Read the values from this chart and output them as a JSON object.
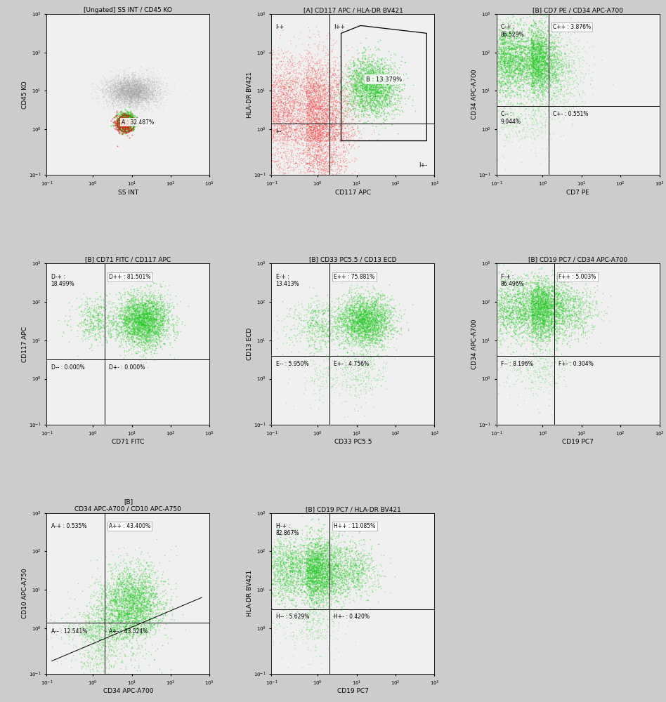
{
  "bg_color": "#cccccc",
  "plot_bg": "#f0f0f0",
  "plots": [
    {
      "idx": 0,
      "title": "[Ungated] SS INT / CD45 KO",
      "xlabel": "SS INT",
      "ylabel": "CD45 KO",
      "xlim": [
        -1,
        3
      ],
      "ylim": [
        -1,
        3
      ],
      "xticks": [
        -1,
        0,
        1,
        2,
        3
      ],
      "yticks": [
        -1,
        0,
        1,
        2,
        3
      ]
    },
    {
      "idx": 1,
      "title": "[A] CD117 APC / HLA-DR BV421",
      "xlabel": "CD117 APC",
      "ylabel": "HLA-DR BV421",
      "xlim": [
        -1,
        3
      ],
      "ylim": [
        -1,
        3
      ],
      "xticks": [
        -1,
        0,
        1,
        2,
        3
      ],
      "yticks": [
        -1,
        0,
        1,
        2,
        3
      ],
      "quad_x": 0.3,
      "quad_y": 0.15,
      "quad_labels": [
        "I-+",
        "I++",
        "I--",
        "I+-"
      ],
      "gate_label": "B : 13.379%"
    },
    {
      "idx": 2,
      "title": "[B] CD7 PE / CD34 APC-A700",
      "xlabel": "CD7 PE",
      "ylabel": "CD34 APC-A700",
      "xlim": [
        -1,
        3
      ],
      "ylim": [
        -1,
        3
      ],
      "xticks": [
        -1,
        0,
        1,
        2,
        3
      ],
      "yticks": [
        -1,
        0,
        1,
        2,
        3
      ],
      "quad_x": 0.15,
      "quad_y": 0.6,
      "quad_labels_tl": "C-+ :\n86.529%",
      "quad_labels_tr": "C++ : 3.876%",
      "quad_labels_bl": "C-- :\n9.044%",
      "quad_labels_br": "C+- : 0.551%"
    },
    {
      "idx": 3,
      "title": "[B] CD71 FITC / CD117 APC",
      "xlabel": "CD71 FITC",
      "ylabel": "CD117 APC",
      "xlim": [
        -1,
        3
      ],
      "ylim": [
        -1,
        3
      ],
      "xticks": [
        -1,
        0,
        1,
        2,
        3
      ],
      "yticks": [
        -1,
        0,
        1,
        2,
        3
      ],
      "quad_x": 0.3,
      "quad_y": 0.5,
      "quad_labels_tl": "D-+ :\n18.499%",
      "quad_labels_tr": "D++ : 81.501%",
      "quad_labels_bl": "D-- : 0.000%",
      "quad_labels_br": "D+- : 0.000%"
    },
    {
      "idx": 4,
      "title": "[B] CD33 PC5.5 / CD13 ECD",
      "xlabel": "CD33 PC5.5",
      "ylabel": "CD13 ECD",
      "xlim": [
        -1,
        3
      ],
      "ylim": [
        -1,
        3
      ],
      "xticks": [
        -1,
        0,
        1,
        2,
        3
      ],
      "yticks": [
        -1,
        0,
        1,
        2,
        3
      ],
      "quad_x": 0.3,
      "quad_y": 0.6,
      "quad_labels_tl": "E-+ :\n13.413%",
      "quad_labels_tr": "E++ : 75.881%",
      "quad_labels_bl": "E-- : 5.950%",
      "quad_labels_br": "E+- : 4.756%"
    },
    {
      "idx": 5,
      "title": "[B] CD19 PC7 / CD34 APC-A700",
      "xlabel": "CD19 PC7",
      "ylabel": "CD34 APC-A700",
      "xlim": [
        -1,
        3
      ],
      "ylim": [
        -1,
        3
      ],
      "xticks": [
        -1,
        0,
        1,
        2,
        3
      ],
      "yticks": [
        -1,
        0,
        1,
        2,
        3
      ],
      "quad_x": 0.3,
      "quad_y": 0.6,
      "quad_labels_tl": "F-+ :\n86.496%",
      "quad_labels_tr": "F++ : 5.003%",
      "quad_labels_bl": "F-- : 8.196%",
      "quad_labels_br": "F+- : 0.304%"
    },
    {
      "idx": 6,
      "title": "[B]\nCD34 APC-A700 / CD10 APC-A750",
      "xlabel": "CD34 APC-A700",
      "ylabel": "CD10 APC-A750",
      "xlim": [
        -1,
        3
      ],
      "ylim": [
        -1,
        3
      ],
      "xticks": [
        -1,
        0,
        1,
        2,
        3
      ],
      "yticks": [
        -1,
        0,
        1,
        2,
        3
      ],
      "quad_x": 0.3,
      "quad_labels_tl": "A-+ : 0.535%",
      "quad_labels_tr": "A++ : 43.400%",
      "quad_labels_bl": "A-- : 12.541%",
      "quad_labels_br": "A+- : 43.524%"
    },
    {
      "idx": 7,
      "title": "[B] CD19 PC7 / HLA-DR BV421",
      "xlabel": "CD19 PC7",
      "ylabel": "HLA-DR BV421",
      "xlim": [
        -1,
        3
      ],
      "ylim": [
        -1,
        3
      ],
      "xticks": [
        -1,
        0,
        1,
        2,
        3
      ],
      "yticks": [
        -1,
        0,
        1,
        2,
        3
      ],
      "quad_x": 0.3,
      "quad_y": 0.5,
      "quad_labels_tl": "H-+ :\n82.867%",
      "quad_labels_tr": "H++ : 11.085%",
      "quad_labels_bl": "H-- : 5.629%",
      "quad_labels_br": "H+- : 0.420%"
    }
  ]
}
